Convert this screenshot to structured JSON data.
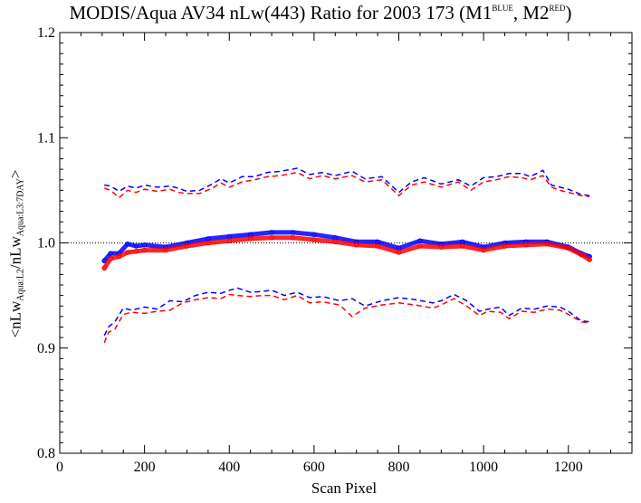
{
  "chart_data": {
    "type": "line",
    "title": {
      "main": "MODIS/Aqua AV34 nLw(443) Ratio for 2003 173 (M1",
      "sup1": "BLUE",
      "mid": ", M2",
      "sup2": "RED",
      "end": ")"
    },
    "xlabel": "Scan Pixel",
    "ylabel": {
      "pre": "<nLw",
      "sub1": "Aqua:L2",
      "mid": "/nLw",
      "sub2": "Aqua:L3:7DAY",
      "post": ">"
    },
    "xlim": [
      0,
      1350
    ],
    "ylim": [
      0.8,
      1.2
    ],
    "xticks": [
      0,
      200,
      400,
      600,
      800,
      1000,
      1200
    ],
    "yticks": [
      0.8,
      0.9,
      1.0,
      1.1,
      1.2
    ],
    "reference_line": 1.0,
    "colors": {
      "M1": "#0000ff",
      "M2": "#ff0000",
      "axis": "#000000"
    },
    "series": [
      {
        "name": "M1",
        "kind": "mean",
        "style": "points",
        "color": "#0000ff",
        "x": [
          105,
          120,
          140,
          160,
          180,
          200,
          250,
          300,
          350,
          400,
          450,
          500,
          550,
          600,
          650,
          700,
          750,
          800,
          850,
          900,
          950,
          1000,
          1050,
          1100,
          1150,
          1200,
          1230,
          1250
        ],
        "y": [
          0.983,
          0.99,
          0.99,
          0.999,
          0.997,
          0.998,
          0.996,
          1.0,
          1.004,
          1.006,
          1.008,
          1.01,
          1.01,
          1.008,
          1.005,
          1.001,
          1.001,
          0.995,
          1.002,
          0.999,
          1.001,
          0.996,
          1.0,
          1.001,
          1.001,
          0.996,
          0.99,
          0.987
        ]
      },
      {
        "name": "M2",
        "kind": "mean",
        "style": "points",
        "color": "#ff0000",
        "x": [
          105,
          120,
          140,
          160,
          180,
          200,
          250,
          300,
          350,
          400,
          450,
          500,
          550,
          600,
          650,
          700,
          750,
          800,
          850,
          900,
          950,
          1000,
          1050,
          1100,
          1150,
          1200,
          1230,
          1250
        ],
        "y": [
          0.976,
          0.985,
          0.987,
          0.991,
          0.992,
          0.993,
          0.993,
          0.997,
          1.0,
          1.002,
          1.004,
          1.005,
          1.005,
          1.003,
          1.001,
          0.998,
          0.997,
          0.991,
          0.997,
          0.996,
          0.997,
          0.993,
          0.997,
          0.998,
          0.999,
          0.995,
          0.989,
          0.984
        ]
      },
      {
        "name": "M1",
        "kind": "upper",
        "style": "dashed",
        "color": "#0000ff",
        "x": [
          105,
          120,
          140,
          160,
          180,
          200,
          230,
          260,
          280,
          300,
          330,
          360,
          380,
          400,
          430,
          460,
          490,
          520,
          560,
          590,
          620,
          650,
          690,
          720,
          760,
          800,
          830,
          860,
          900,
          940,
          970,
          1000,
          1030,
          1060,
          1090,
          1110,
          1140,
          1160,
          1180,
          1200,
          1230,
          1250
        ],
        "y": [
          1.055,
          1.054,
          1.049,
          1.054,
          1.052,
          1.055,
          1.053,
          1.054,
          1.052,
          1.049,
          1.05,
          1.056,
          1.061,
          1.057,
          1.063,
          1.063,
          1.067,
          1.068,
          1.071,
          1.065,
          1.067,
          1.064,
          1.068,
          1.061,
          1.063,
          1.048,
          1.058,
          1.062,
          1.056,
          1.06,
          1.054,
          1.062,
          1.063,
          1.066,
          1.066,
          1.063,
          1.069,
          1.055,
          1.053,
          1.051,
          1.046,
          1.045
        ]
      },
      {
        "name": "M2",
        "kind": "upper",
        "style": "dashed",
        "color": "#ff0000",
        "x": [
          105,
          120,
          140,
          160,
          180,
          200,
          230,
          260,
          280,
          300,
          330,
          360,
          380,
          400,
          430,
          460,
          490,
          520,
          560,
          590,
          620,
          650,
          690,
          720,
          760,
          800,
          830,
          860,
          900,
          940,
          970,
          1000,
          1030,
          1060,
          1090,
          1110,
          1140,
          1160,
          1180,
          1200,
          1230,
          1250
        ],
        "y": [
          1.052,
          1.05,
          1.043,
          1.05,
          1.048,
          1.051,
          1.049,
          1.051,
          1.048,
          1.047,
          1.047,
          1.052,
          1.057,
          1.053,
          1.058,
          1.06,
          1.063,
          1.064,
          1.067,
          1.061,
          1.064,
          1.061,
          1.064,
          1.058,
          1.06,
          1.045,
          1.055,
          1.058,
          1.053,
          1.058,
          1.05,
          1.058,
          1.06,
          1.063,
          1.062,
          1.06,
          1.064,
          1.053,
          1.05,
          1.048,
          1.045,
          1.044
        ]
      },
      {
        "name": "M1",
        "kind": "lower",
        "style": "dashed",
        "color": "#0000ff",
        "x": [
          105,
          115,
          130,
          150,
          170,
          200,
          230,
          260,
          290,
          320,
          350,
          380,
          400,
          420,
          450,
          480,
          500,
          530,
          560,
          590,
          620,
          660,
          690,
          720,
          760,
          800,
          840,
          880,
          900,
          930,
          960,
          990,
          1010,
          1040,
          1060,
          1090,
          1120,
          1150,
          1180,
          1200,
          1230,
          1250
        ],
        "y": [
          0.912,
          0.92,
          0.925,
          0.938,
          0.936,
          0.939,
          0.937,
          0.945,
          0.944,
          0.95,
          0.953,
          0.952,
          0.955,
          0.957,
          0.953,
          0.954,
          0.955,
          0.95,
          0.953,
          0.948,
          0.949,
          0.945,
          0.947,
          0.94,
          0.945,
          0.948,
          0.946,
          0.943,
          0.945,
          0.951,
          0.945,
          0.935,
          0.937,
          0.939,
          0.931,
          0.938,
          0.937,
          0.94,
          0.939,
          0.935,
          0.926,
          0.925
        ]
      },
      {
        "name": "M2",
        "kind": "lower",
        "style": "dashed",
        "color": "#ff0000",
        "x": [
          105,
          115,
          130,
          150,
          170,
          200,
          230,
          260,
          290,
          320,
          350,
          380,
          400,
          420,
          450,
          480,
          500,
          530,
          560,
          590,
          620,
          660,
          690,
          720,
          760,
          800,
          840,
          880,
          900,
          930,
          960,
          990,
          1010,
          1040,
          1060,
          1090,
          1120,
          1150,
          1180,
          1200,
          1230,
          1250
        ],
        "y": [
          0.905,
          0.915,
          0.918,
          0.932,
          0.934,
          0.933,
          0.935,
          0.936,
          0.943,
          0.946,
          0.948,
          0.947,
          0.951,
          0.95,
          0.949,
          0.95,
          0.95,
          0.946,
          0.95,
          0.943,
          0.944,
          0.941,
          0.93,
          0.938,
          0.941,
          0.943,
          0.941,
          0.938,
          0.941,
          0.947,
          0.94,
          0.931,
          0.935,
          0.934,
          0.928,
          0.935,
          0.934,
          0.937,
          0.936,
          0.932,
          0.925,
          0.924
        ]
      }
    ]
  }
}
